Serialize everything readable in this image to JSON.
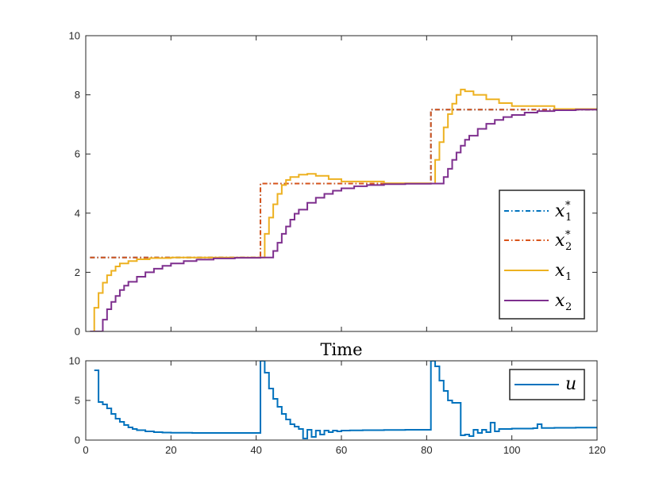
{
  "chart_data": [
    {
      "type": "line",
      "title": "",
      "xlabel": "Time",
      "ylabel": "",
      "xlim": [
        0,
        120
      ],
      "ylim": [
        0,
        10
      ],
      "xticks": [
        0,
        20,
        40,
        60,
        80,
        100,
        120
      ],
      "xtick_labels_shown": false,
      "yticks": [
        0,
        2,
        4,
        6,
        8,
        10
      ],
      "ytick_labels": [
        "0",
        "2",
        "4",
        "6",
        "8",
        "10"
      ],
      "grid": false,
      "legend_position": "bottom-right",
      "series": [
        {
          "name": "x*1",
          "legend_symbol": "x",
          "legend_sub": "1",
          "legend_sup": "*",
          "style": "dash-dot",
          "color": "#0072BD",
          "step": true,
          "x": [
            1,
            41,
            41,
            81,
            81,
            120
          ],
          "y": [
            2.5,
            2.5,
            5,
            5,
            7.5,
            7.5
          ]
        },
        {
          "name": "x*2",
          "legend_symbol": "x",
          "legend_sub": "2",
          "legend_sup": "*",
          "style": "dash-dot",
          "color": "#D95319",
          "step": true,
          "x": [
            1,
            41,
            41,
            81,
            81,
            120
          ],
          "y": [
            2.5,
            2.5,
            5,
            5,
            7.5,
            7.5
          ]
        },
        {
          "name": "x1",
          "legend_symbol": "x",
          "legend_sub": "1",
          "legend_sup": "",
          "style": "solid",
          "color": "#EDB120",
          "step": true,
          "x": [
            1,
            2,
            3,
            4,
            5,
            6,
            7,
            8,
            10,
            12,
            15,
            20,
            30,
            41,
            42,
            43,
            44,
            45,
            46,
            47,
            48,
            50,
            52,
            54,
            57,
            60,
            70,
            81,
            82,
            83,
            84,
            85,
            86,
            87,
            88,
            89,
            91,
            94,
            97,
            100,
            110,
            120
          ],
          "y": [
            0,
            0.8,
            1.3,
            1.65,
            1.9,
            2.05,
            2.2,
            2.3,
            2.38,
            2.44,
            2.48,
            2.5,
            2.5,
            2.5,
            3.3,
            3.85,
            4.3,
            4.65,
            4.95,
            5.12,
            5.22,
            5.3,
            5.33,
            5.26,
            5.15,
            5.07,
            5.01,
            5.0,
            5.8,
            6.4,
            6.9,
            7.35,
            7.7,
            8.0,
            8.18,
            8.12,
            8.0,
            7.85,
            7.72,
            7.62,
            7.52,
            7.5
          ]
        },
        {
          "name": "x2",
          "legend_symbol": "x",
          "legend_sub": "2",
          "legend_sup": "",
          "style": "solid",
          "color": "#7E2F8E",
          "step": true,
          "x": [
            1,
            3,
            4,
            5,
            6,
            7,
            8,
            9,
            10,
            12,
            14,
            16,
            18,
            20,
            23,
            26,
            30,
            35,
            41,
            43,
            44,
            45,
            46,
            47,
            48,
            49,
            50,
            52,
            54,
            56,
            58,
            60,
            63,
            66,
            70,
            75,
            81,
            83,
            84,
            85,
            86,
            87,
            88,
            89,
            90,
            92,
            94,
            96,
            98,
            100,
            103,
            106,
            110,
            115,
            120
          ],
          "y": [
            0,
            0,
            0.4,
            0.75,
            1.0,
            1.2,
            1.4,
            1.55,
            1.68,
            1.85,
            2.0,
            2.12,
            2.22,
            2.3,
            2.38,
            2.43,
            2.47,
            2.49,
            2.5,
            2.5,
            2.72,
            3.0,
            3.3,
            3.55,
            3.78,
            3.98,
            4.12,
            4.35,
            4.52,
            4.65,
            4.76,
            4.84,
            4.91,
            4.95,
            4.98,
            4.995,
            5.0,
            5.0,
            5.22,
            5.5,
            5.8,
            6.05,
            6.28,
            6.48,
            6.62,
            6.85,
            7.02,
            7.15,
            7.25,
            7.32,
            7.4,
            7.45,
            7.48,
            7.5,
            7.5
          ]
        }
      ]
    },
    {
      "type": "line",
      "title": "",
      "xlabel": "",
      "ylabel": "",
      "xlim": [
        0,
        120
      ],
      "ylim": [
        0,
        10
      ],
      "xticks": [
        0,
        20,
        40,
        60,
        80,
        100,
        120
      ],
      "xtick_labels": [
        "0",
        "20",
        "40",
        "60",
        "80",
        "100",
        "120"
      ],
      "yticks": [
        0,
        5,
        10
      ],
      "ytick_labels": [
        "0",
        "5",
        "10"
      ],
      "grid": false,
      "legend_position": "top-right",
      "series": [
        {
          "name": "u",
          "legend_symbol": "u",
          "style": "solid",
          "color": "#0072BD",
          "step": true,
          "x": [
            2,
            3,
            4,
            5,
            6,
            7,
            8,
            9,
            10,
            11,
            12,
            14,
            16,
            18,
            20,
            25,
            30,
            41,
            42,
            43,
            44,
            45,
            46,
            47,
            48,
            49,
            50,
            51,
            52,
            53,
            54,
            55,
            56,
            57,
            58,
            59,
            60,
            62,
            65,
            70,
            75,
            81,
            82,
            83,
            84,
            85,
            86,
            87,
            88,
            89,
            90,
            91,
            92,
            93,
            94,
            95,
            96,
            97,
            98,
            100,
            105,
            106,
            107,
            110,
            115,
            120
          ],
          "y": [
            8.8,
            4.8,
            4.5,
            4.0,
            3.3,
            2.7,
            2.3,
            1.9,
            1.6,
            1.4,
            1.25,
            1.1,
            1.0,
            0.95,
            0.92,
            0.9,
            0.9,
            10,
            8.5,
            6.5,
            5.2,
            4.2,
            3.3,
            2.6,
            2.0,
            1.7,
            1.4,
            0.2,
            1.3,
            0.4,
            1.2,
            0.7,
            1.2,
            1.0,
            1.2,
            1.1,
            1.2,
            1.22,
            1.25,
            1.28,
            1.3,
            10,
            9.3,
            7.5,
            6.2,
            5.0,
            4.7,
            4.7,
            0.6,
            0.7,
            0.5,
            1.3,
            0.9,
            1.3,
            1.0,
            2.2,
            1.1,
            1.4,
            1.4,
            1.45,
            1.5,
            2.0,
            1.52,
            1.55,
            1.58,
            1.6
          ]
        }
      ]
    }
  ]
}
